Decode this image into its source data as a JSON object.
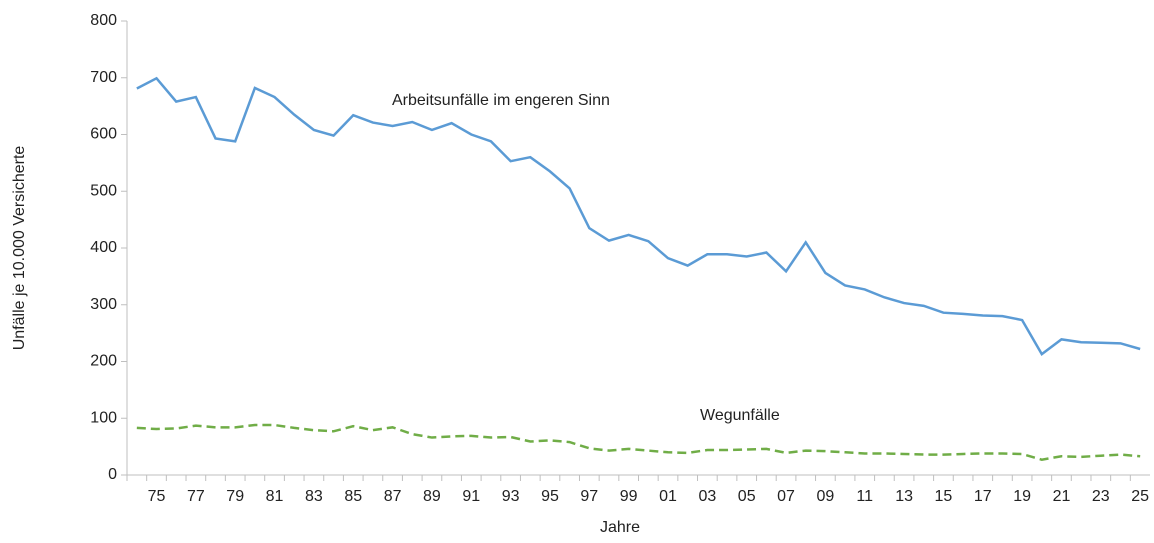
{
  "chart_data": {
    "type": "line",
    "xlabel": "Jahre",
    "ylabel": "Unfälle je 10.000 Versicherte",
    "categories": [
      null,
      "75",
      null,
      "77",
      null,
      "79",
      null,
      "81",
      null,
      "83",
      null,
      "85",
      null,
      "87",
      null,
      "89",
      null,
      "91",
      null,
      "93",
      null,
      "95",
      null,
      "97",
      null,
      "99",
      null,
      "01",
      null,
      "03",
      null,
      "05",
      null,
      "07",
      null,
      "09",
      null,
      "11",
      null,
      "13",
      null,
      "15",
      null,
      "17",
      null,
      "19",
      null,
      "21",
      null,
      "23",
      null,
      "25"
    ],
    "series": [
      {
        "name": "Arbeitsunfälle im engeren Sinn",
        "color": "#5b9bd5",
        "dash": false,
        "values": [
          681,
          699,
          658,
          666,
          593,
          588,
          682,
          666,
          635,
          608,
          598,
          634,
          621,
          615,
          622,
          608,
          620,
          600,
          588,
          553,
          560,
          535,
          505,
          435,
          413,
          423,
          412,
          382,
          369,
          389,
          389,
          385,
          392,
          359,
          410,
          356,
          334,
          327,
          313,
          303,
          298,
          286,
          284,
          281,
          280,
          273,
          213,
          239,
          234,
          233,
          232,
          222
        ]
      },
      {
        "name": "Wegunfälle",
        "color": "#70ad47",
        "dash": true,
        "values": [
          83,
          81,
          82,
          87,
          84,
          84,
          88,
          88,
          83,
          79,
          77,
          86,
          79,
          84,
          72,
          66,
          68,
          69,
          66,
          67,
          59,
          61,
          58,
          47,
          43,
          46,
          43,
          40,
          39,
          44,
          44,
          45,
          46,
          39,
          43,
          42,
          40,
          38,
          38,
          37,
          36,
          36,
          37,
          38,
          38,
          37,
          27,
          33,
          32,
          34,
          36,
          33
        ]
      }
    ],
    "ylim": [
      0,
      800
    ],
    "yticks": [
      0,
      100,
      200,
      300,
      400,
      500,
      600,
      700,
      800
    ],
    "grid": false
  }
}
